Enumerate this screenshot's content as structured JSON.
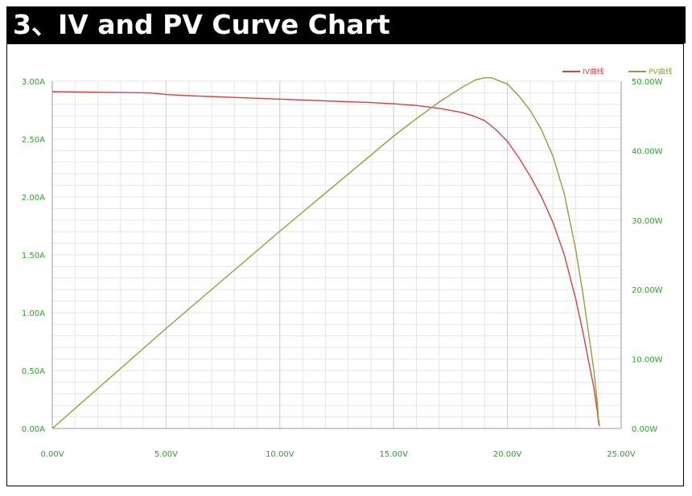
{
  "page_title": "3、IV and PV Curve Chart",
  "colors": {
    "iv_line": "#d94040",
    "pv_line": "#8aa23a",
    "tick_text": "#2ca02c",
    "grid": "#e6e6e6",
    "axis": "#9a9a9a"
  },
  "chart_data": {
    "type": "line",
    "x_unit": "V",
    "xlim": [
      0,
      25
    ],
    "y_left_lim": [
      0,
      3.0
    ],
    "y_right_lim": [
      0,
      50
    ],
    "x_ticks": [
      "0.00V",
      "5.00V",
      "10.00V",
      "15.00V",
      "20.00V",
      "25.00V"
    ],
    "y_left_ticks": [
      "0.00A",
      "0.50A",
      "1.00A",
      "1.50A",
      "2.00A",
      "2.50A",
      "3.00A"
    ],
    "y_right_ticks": [
      "0.00W",
      "10.00W",
      "20.00W",
      "30.00W",
      "40.00W",
      "50.00W"
    ],
    "legend_position": "top-right",
    "grid": true,
    "series": [
      {
        "name": "IV曲线",
        "axis": "left",
        "color": "#d94040",
        "points": [
          [
            0,
            2.91
          ],
          [
            2,
            2.905
          ],
          [
            4,
            2.9
          ],
          [
            4.5,
            2.895
          ],
          [
            5,
            2.885
          ],
          [
            6,
            2.875
          ],
          [
            8,
            2.86
          ],
          [
            10,
            2.845
          ],
          [
            12,
            2.83
          ],
          [
            14,
            2.815
          ],
          [
            15,
            2.805
          ],
          [
            16,
            2.79
          ],
          [
            17,
            2.765
          ],
          [
            18,
            2.73
          ],
          [
            18.5,
            2.7
          ],
          [
            19,
            2.66
          ],
          [
            19.5,
            2.58
          ],
          [
            20,
            2.48
          ],
          [
            20.5,
            2.34
          ],
          [
            21,
            2.18
          ],
          [
            21.5,
            2.0
          ],
          [
            22,
            1.78
          ],
          [
            22.5,
            1.5
          ],
          [
            23,
            1.12
          ],
          [
            23.3,
            0.85
          ],
          [
            23.6,
            0.55
          ],
          [
            23.8,
            0.35
          ],
          [
            23.95,
            0.15
          ],
          [
            24.0,
            0.06
          ],
          [
            24.05,
            0.02
          ]
        ]
      },
      {
        "name": "PV曲线",
        "axis": "right",
        "color": "#8aa23a",
        "points": [
          [
            0,
            0
          ],
          [
            5,
            14.4
          ],
          [
            10,
            28.4
          ],
          [
            15,
            42.1
          ],
          [
            16,
            44.6
          ],
          [
            17,
            47.0
          ],
          [
            18,
            49.1
          ],
          [
            18.6,
            50.2
          ],
          [
            19,
            50.5
          ],
          [
            19.3,
            50.5
          ],
          [
            19.6,
            50.1
          ],
          [
            20,
            49.6
          ],
          [
            20.5,
            47.9
          ],
          [
            21,
            45.8
          ],
          [
            21.5,
            43.0
          ],
          [
            22,
            39.2
          ],
          [
            22.5,
            33.8
          ],
          [
            23,
            25.8
          ],
          [
            23.3,
            19.8
          ],
          [
            23.6,
            13.0
          ],
          [
            23.8,
            8.3
          ],
          [
            23.95,
            3.6
          ],
          [
            24.0,
            1.4
          ],
          [
            24.05,
            0.5
          ]
        ]
      }
    ]
  }
}
